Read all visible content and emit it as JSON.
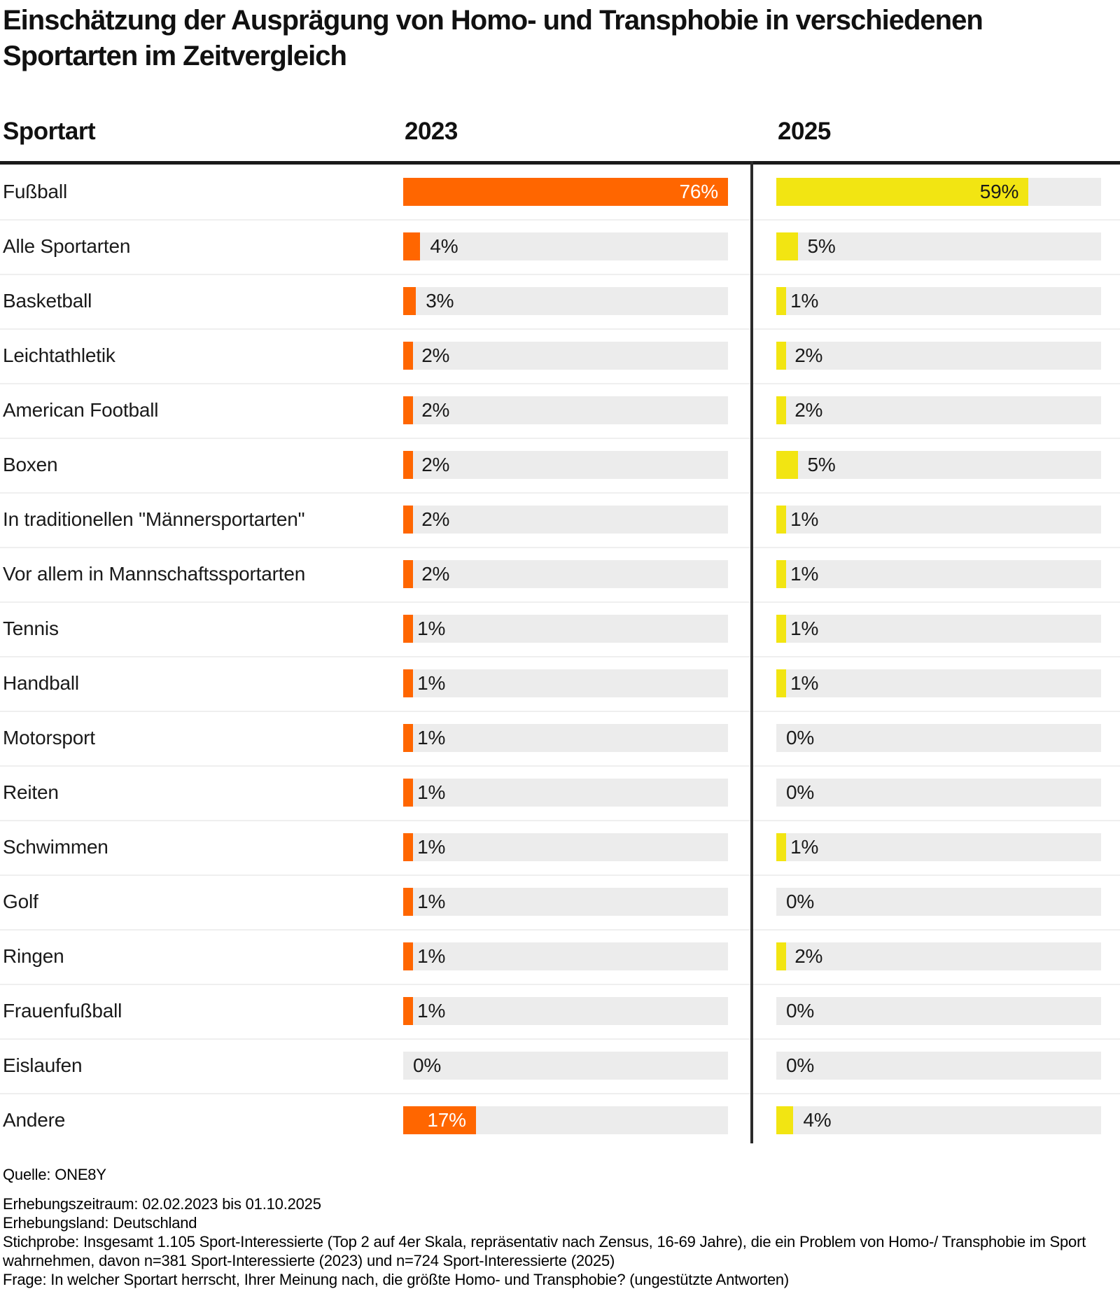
{
  "title": "Einschätzung der Ausprägung von Homo- und Transphobie in verschiedenen Sportarten im Zeitvergleich",
  "columns": {
    "sport": "Sportart",
    "y2023": "2023",
    "y2025": "2025"
  },
  "rows": [
    {
      "label": "Fußball",
      "v2023": "76%",
      "v2025": "59%"
    },
    {
      "label": "Alle Sportarten",
      "v2023": "4%",
      "v2025": "5%"
    },
    {
      "label": "Basketball",
      "v2023": "3%",
      "v2025": "1%"
    },
    {
      "label": "Leichtathletik",
      "v2023": "2%",
      "v2025": "2%"
    },
    {
      "label": "American Football",
      "v2023": "2%",
      "v2025": "2%"
    },
    {
      "label": "Boxen",
      "v2023": "2%",
      "v2025": "5%"
    },
    {
      "label": "In traditionellen \"Männersportarten\"",
      "v2023": "2%",
      "v2025": "1%"
    },
    {
      "label": "Vor allem in Mannschaftssportarten",
      "v2023": "2%",
      "v2025": "1%"
    },
    {
      "label": "Tennis",
      "v2023": "1%",
      "v2025": "1%"
    },
    {
      "label": "Handball",
      "v2023": "1%",
      "v2025": "1%"
    },
    {
      "label": "Motorsport",
      "v2023": "1%",
      "v2025": "0%"
    },
    {
      "label": "Reiten",
      "v2023": "1%",
      "v2025": "0%"
    },
    {
      "label": "Schwimmen",
      "v2023": "1%",
      "v2025": "1%"
    },
    {
      "label": "Golf",
      "v2023": "1%",
      "v2025": "0%"
    },
    {
      "label": "Ringen",
      "v2023": "1%",
      "v2025": "2%"
    },
    {
      "label": "Frauenfußball",
      "v2023": "1%",
      "v2025": "0%"
    },
    {
      "label": "Eislaufen",
      "v2023": "0%",
      "v2025": "0%"
    },
    {
      "label": "Andere",
      "v2023": "17%",
      "v2025": "4%"
    }
  ],
  "footer": {
    "source": "Quelle: ONE8Y",
    "lines": [
      "Erhebungszeitraum: 02.02.2023 bis 01.10.2025",
      "Erhebungsland: Deutschland",
      "Stichprobe: Insgesamt 1.105 Sport-Interessierte (Top 2 auf 4er Skala, repräsentativ nach Zensus, 16-69 Jahre), die ein Problem von Homo-/ Transphobie im Sport wahrnehmen, davon n=381 Sport-Interessierte (2023) und n=724 Sport-Interessierte (2025)",
      "Frage: In welcher Sportart herrscht, Ihrer Meinung nach, die größte Homo- und Transphobie? (ungestützte Antworten)"
    ]
  },
  "colors": {
    "bar_2023": "#FF6600",
    "bar_2025": "#F2E512",
    "track": "#ECECEC",
    "rule": "#1A1A1A",
    "divider": "#2B2B2B",
    "separator": "#EFEFEF",
    "text": "#1A1A1A",
    "value_on_orange": "#FFFFFF"
  },
  "chart_data": {
    "type": "bar",
    "orientation": "horizontal",
    "title": "Einschätzung der Ausprägung von Homo- und Transphobie in verschiedenen Sportarten im Zeitvergleich",
    "categories": [
      "Fußball",
      "Alle Sportarten",
      "Basketball",
      "Leichtathletik",
      "American Football",
      "Boxen",
      "In traditionellen \"Männersportarten\"",
      "Vor allem in Mannschaftssportarten",
      "Tennis",
      "Handball",
      "Motorsport",
      "Reiten",
      "Schwimmen",
      "Golf",
      "Ringen",
      "Frauenfußball",
      "Eislaufen",
      "Andere"
    ],
    "series": [
      {
        "name": "2023",
        "values": [
          76,
          4,
          3,
          2,
          2,
          2,
          2,
          2,
          1,
          1,
          1,
          1,
          1,
          1,
          1,
          1,
          0,
          17
        ]
      },
      {
        "name": "2025",
        "values": [
          59,
          5,
          1,
          2,
          2,
          5,
          1,
          1,
          1,
          1,
          0,
          0,
          1,
          0,
          2,
          0,
          0,
          4
        ]
      }
    ],
    "value_unit": "%",
    "xlim": [
      0,
      76
    ],
    "grid": false,
    "legend_position": "column-headers",
    "note": "bar lengths scaled to max value 76%"
  }
}
